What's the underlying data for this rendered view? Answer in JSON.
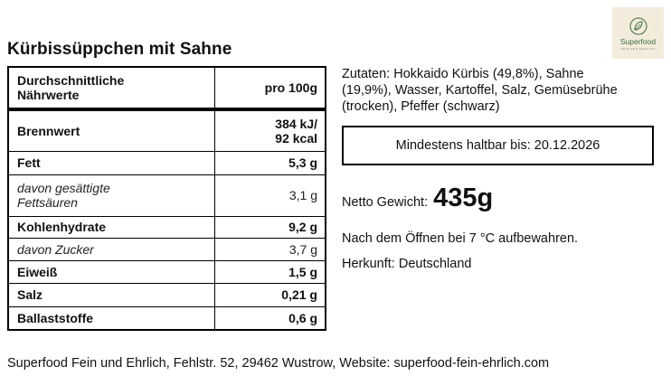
{
  "product": {
    "title": "Kürbissüppchen mit Sahne"
  },
  "logo": {
    "name": "Superfood",
    "subtitle": "FEIN UND EHRLICH",
    "icon": "leaf-icon",
    "color": "#3c6b44",
    "background": "#f3ecdc"
  },
  "nutrition": {
    "header": {
      "label_line1": "Durchschnittliche",
      "label_line2": "Nährwerte",
      "per": "pro 100g"
    },
    "energy": {
      "label": "Brennwert",
      "value_kj": "384 kJ/",
      "value_kcal": "92 kcal"
    },
    "rows": [
      {
        "label": "Fett",
        "value": "5,3 g"
      },
      {
        "label_line1": "davon gesättigte",
        "label_line2": "Fettsäuren",
        "value": "3,1 g"
      },
      {
        "label": "Kohlenhydrate",
        "value": "9,2 g"
      },
      {
        "label": "davon Zucker",
        "value": "3,7 g"
      },
      {
        "label": "Eiweiß",
        "value": "1,5 g"
      },
      {
        "label": "Salz",
        "value": "0,21 g"
      },
      {
        "label": "Ballaststoffe",
        "value": "0,6 g"
      }
    ]
  },
  "ingredients": {
    "line1": "Zutaten: Hokkaido Kürbis (49,8%), Sahne",
    "line2": "(19,9%), Wasser, Kartoffel, Salz, Gemüsebrühe",
    "line3": "(trocken), Pfeffer (schwarz)"
  },
  "best_before": "Mindestens haltbar bis: 20.12.2026",
  "net_weight": {
    "label": "Netto Gewicht:",
    "value": "435g"
  },
  "storage": "Nach dem Öffnen bei 7 °C aufbewahren.",
  "origin": "Herkunft: Deutschland",
  "footer": "Superfood Fein und Ehrlich, Fehlstr. 52, 29462 Wustrow, Website: superfood-fein-ehrlich.com"
}
